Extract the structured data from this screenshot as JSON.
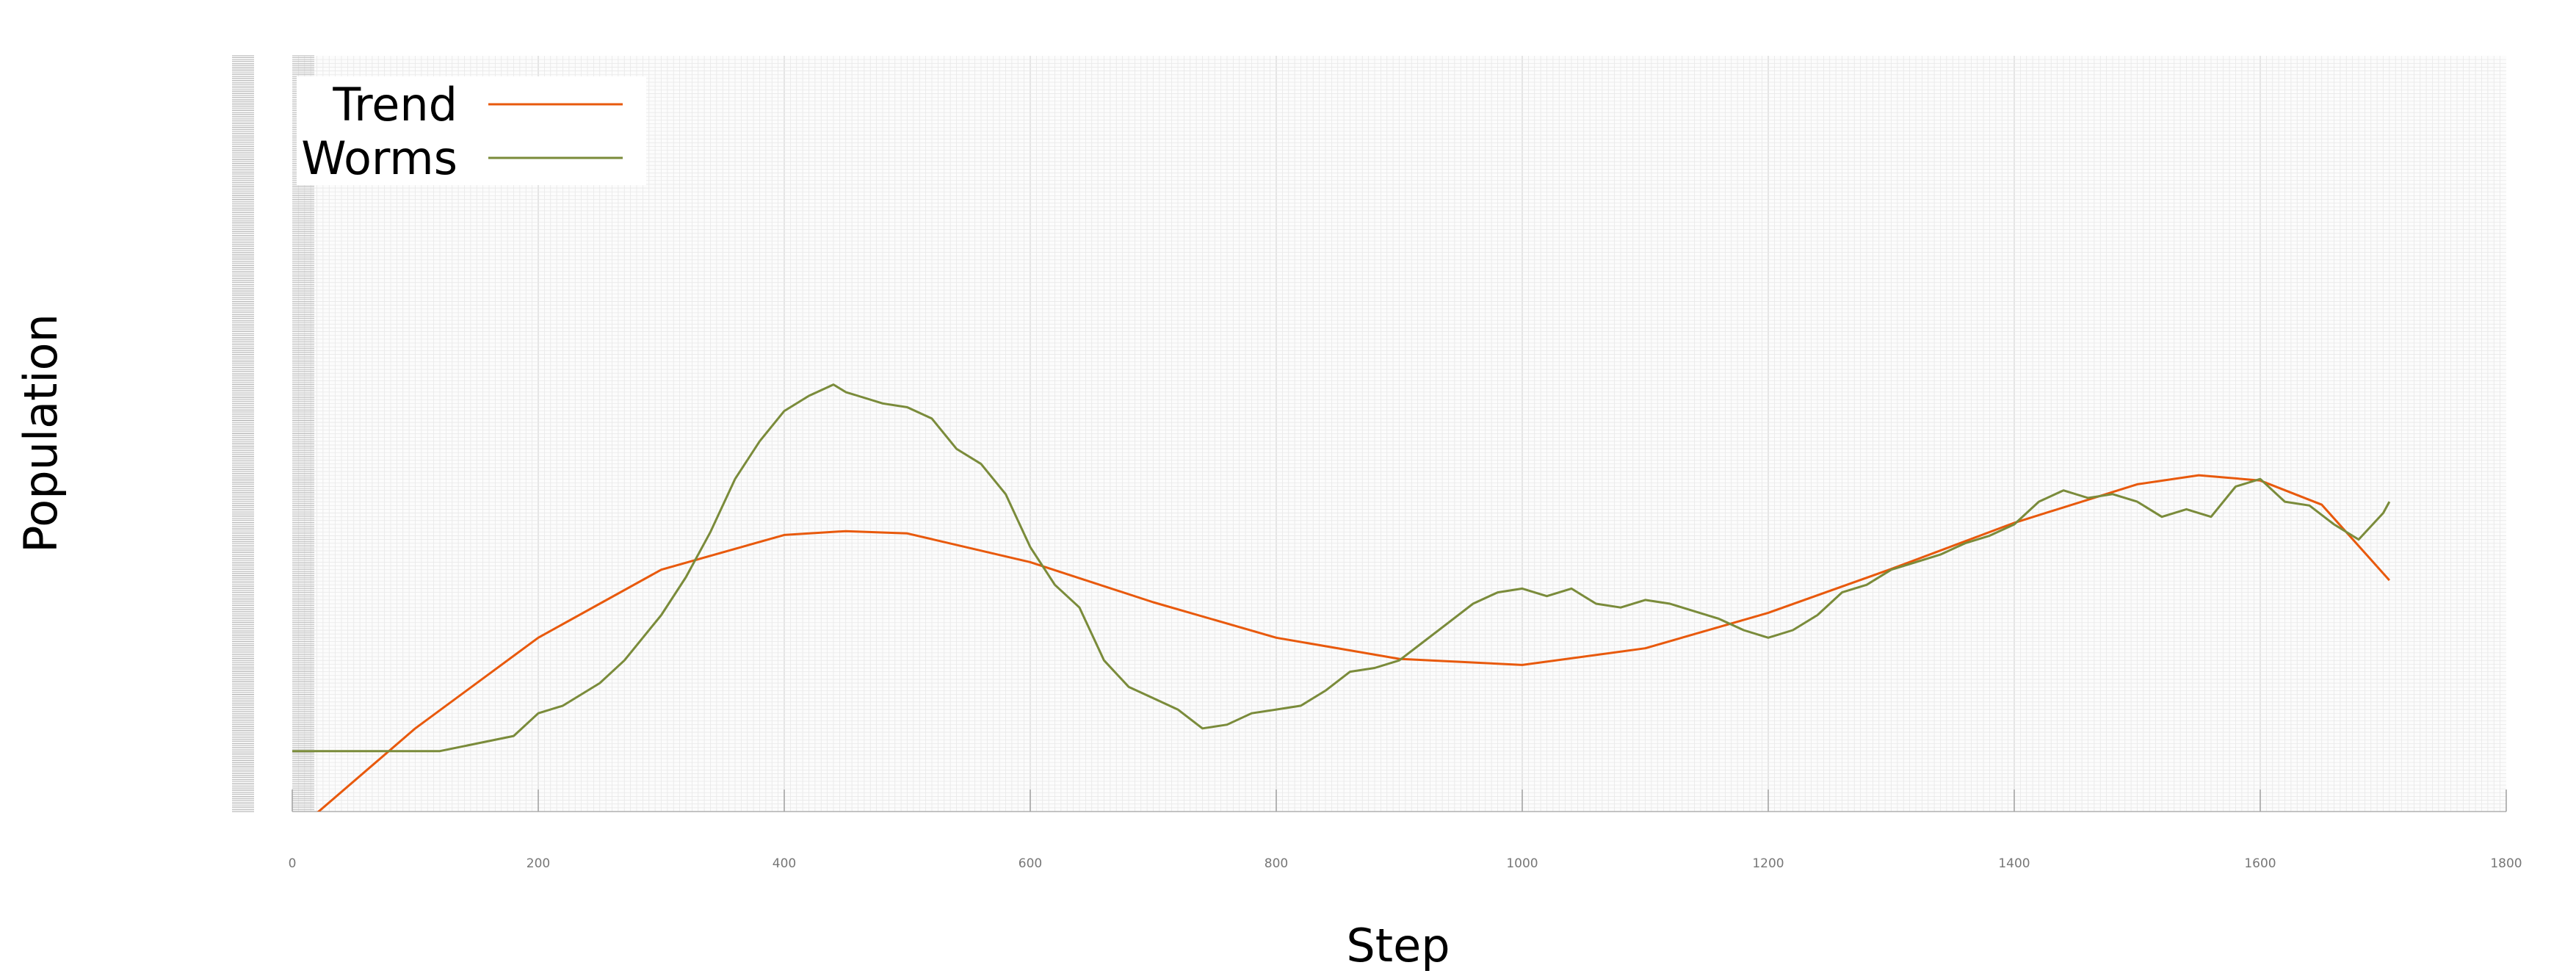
{
  "chart_data": {
    "type": "line",
    "xlabel": "Step",
    "ylabel": "Population",
    "xlim": [
      0,
      1800
    ],
    "ylim": [
      0,
      100
    ],
    "xticks": [
      0,
      200,
      400,
      600,
      800,
      1000,
      1200,
      1400,
      1600,
      1800
    ],
    "x_tick_labels": [
      "0",
      "200",
      "400",
      "600",
      "800",
      "1000",
      "1200",
      "1400",
      "1600",
      "1800"
    ],
    "grid": true,
    "legend": "top-left",
    "series": [
      {
        "name": "Trend",
        "color": "#e8590c",
        "x": [
          0,
          100,
          200,
          300,
          400,
          450,
          500,
          600,
          700,
          800,
          900,
          1000,
          1100,
          1200,
          1300,
          1400,
          1500,
          1550,
          1600,
          1650,
          1705
        ],
        "y": [
          -3,
          11,
          23,
          32,
          36.6,
          37.1,
          36.8,
          33,
          27.7,
          23,
          20.2,
          19.4,
          21.6,
          26.3,
          32.1,
          38.2,
          43.3,
          44.5,
          43.8,
          40.6,
          30.6
        ]
      },
      {
        "name": "Worms",
        "color": "#7a8b3a",
        "x": [
          0,
          100,
          120,
          150,
          180,
          200,
          220,
          250,
          270,
          300,
          320,
          340,
          360,
          380,
          400,
          420,
          440,
          450,
          460,
          480,
          500,
          520,
          540,
          560,
          580,
          600,
          620,
          640,
          660,
          680,
          700,
          720,
          740,
          760,
          780,
          800,
          820,
          840,
          860,
          880,
          900,
          920,
          940,
          960,
          980,
          1000,
          1020,
          1040,
          1060,
          1080,
          1100,
          1120,
          1140,
          1160,
          1180,
          1200,
          1220,
          1240,
          1260,
          1280,
          1300,
          1320,
          1340,
          1360,
          1380,
          1400,
          1420,
          1440,
          1460,
          1480,
          1500,
          1520,
          1540,
          1560,
          1580,
          1600,
          1620,
          1640,
          1660,
          1680,
          1700,
          1705
        ],
        "y": [
          8,
          8,
          8,
          9,
          10,
          13,
          14,
          17,
          20,
          26,
          31,
          37,
          44,
          49,
          53,
          55,
          56.5,
          55.5,
          55,
          54,
          53.5,
          52,
          48,
          46,
          42,
          35,
          30,
          27,
          20,
          16.5,
          15,
          13.5,
          11,
          11.5,
          13,
          13.5,
          14,
          16,
          18.5,
          19,
          20,
          22.5,
          25,
          27.5,
          29,
          29.5,
          28.5,
          29.5,
          27.5,
          27,
          28,
          27.5,
          26.5,
          25.5,
          24,
          23,
          24,
          26,
          29,
          30,
          32,
          33,
          34,
          35.5,
          36.5,
          38,
          41,
          42.5,
          41.5,
          42,
          41,
          39,
          40,
          39,
          43,
          44,
          41,
          40.5,
          38,
          36,
          39.5,
          41
        ]
      }
    ]
  }
}
